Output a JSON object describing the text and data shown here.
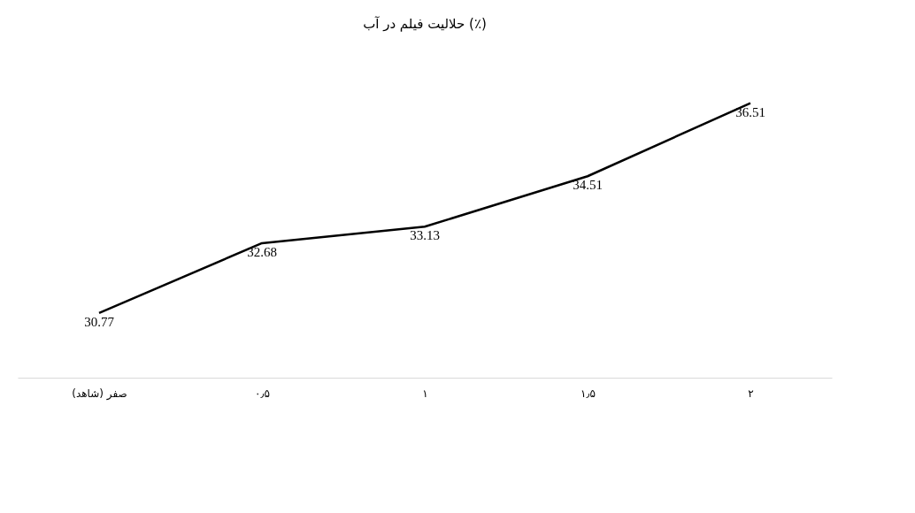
{
  "chart_data": {
    "type": "line",
    "title": "حلالیت فیلم در آب (٪)",
    "categories": [
      "صفر (شاهد)",
      "۰٫۵",
      "۱",
      "۱٫۵",
      "۲"
    ],
    "series": [
      {
        "color": "#000000",
        "values": [
          30.77,
          32.68,
          33.13,
          34.51,
          36.51
        ]
      }
    ],
    "data_labels": true,
    "grid": false,
    "marker": "none",
    "line_style": "solid"
  }
}
